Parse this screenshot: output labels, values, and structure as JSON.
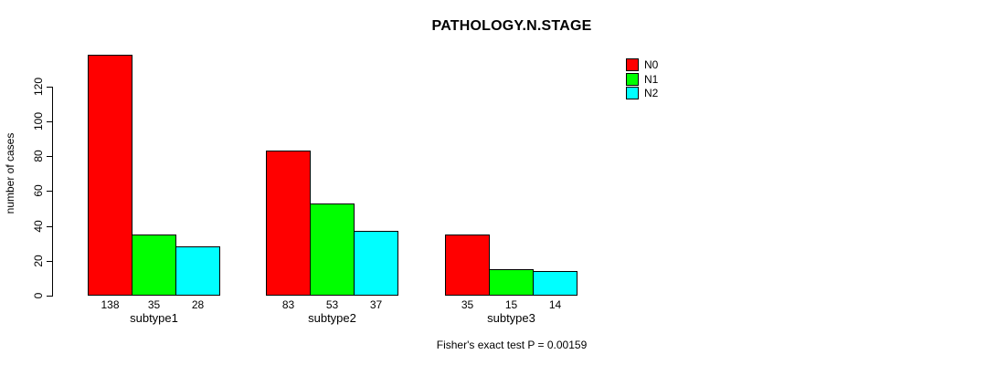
{
  "chart_data": {
    "type": "bar",
    "title": "PATHOLOGY.N.STAGE",
    "xlabel": "",
    "ylabel": "number of cases",
    "categories": [
      "subtype1",
      "subtype2",
      "subtype3"
    ],
    "series": [
      {
        "name": "N0",
        "color": "#ff0000",
        "values": [
          138,
          83,
          35
        ]
      },
      {
        "name": "N1",
        "color": "#00ff00",
        "values": [
          35,
          53,
          15
        ]
      },
      {
        "name": "N2",
        "color": "#00ffff",
        "values": [
          28,
          37,
          14
        ]
      }
    ],
    "yticks": [
      0,
      20,
      40,
      60,
      80,
      100,
      120
    ],
    "ylim": [
      0,
      138
    ],
    "grid": false,
    "bar_value_labels": true,
    "legend_position": "topright",
    "legend_entries": [
      "N0",
      "N1",
      "N2"
    ],
    "annotation": "Fisher's exact test P = 0.00159"
  }
}
